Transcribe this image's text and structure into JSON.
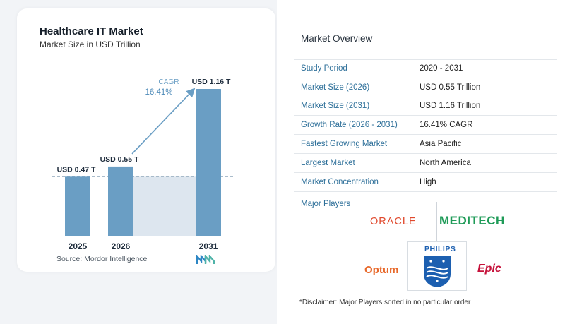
{
  "chart": {
    "title": "Healthcare IT Market",
    "subtitle": "Market Size in USD Trillion",
    "source": "Source:  Mordor Intelligence"
  },
  "chart_data": {
    "type": "bar",
    "title": "Healthcare IT Market",
    "subtitle": "Market Size in USD Trillion",
    "categories": [
      "2025",
      "2026",
      "2031"
    ],
    "values": [
      0.47,
      0.55,
      1.16
    ],
    "data_labels": [
      "USD 0.47 T",
      "USD 0.55 T",
      "USD 1.16 T"
    ],
    "ylim": [
      0,
      1.2
    ],
    "cagr_label": "CAGR",
    "cagr_value": "16.41%",
    "bar_color": "#6a9ec4",
    "band_color": "#dde6ef"
  },
  "overview": {
    "title": "Market Overview",
    "rows": [
      {
        "label": "Study Period",
        "value": "2020 - 2031"
      },
      {
        "label": "Market Size (2026)",
        "value": "USD 0.55 Trillion"
      },
      {
        "label": "Market Size (2031)",
        "value": "USD 1.16 Trillion"
      },
      {
        "label": "Growth Rate (2026 - 2031)",
        "value": "16.41% CAGR"
      },
      {
        "label": "Fastest Growing Market",
        "value": "Asia Pacific"
      },
      {
        "label": "Largest Market",
        "value": "North America"
      },
      {
        "label": "Market Concentration",
        "value": "High"
      }
    ],
    "players_title": "Major Players",
    "players": [
      "ORACLE",
      "MEDITECH",
      "Optum",
      "PHILIPS",
      "Epic"
    ],
    "disclaimer": "*Disclaimer: Major Players sorted in no particular order"
  },
  "colors": {
    "accent": "#2d6f99",
    "oracle": "#e0492d",
    "meditech": "#1f9b58",
    "optum": "#e8692b",
    "epic": "#c6113a",
    "philips": "#1c5fb0"
  }
}
